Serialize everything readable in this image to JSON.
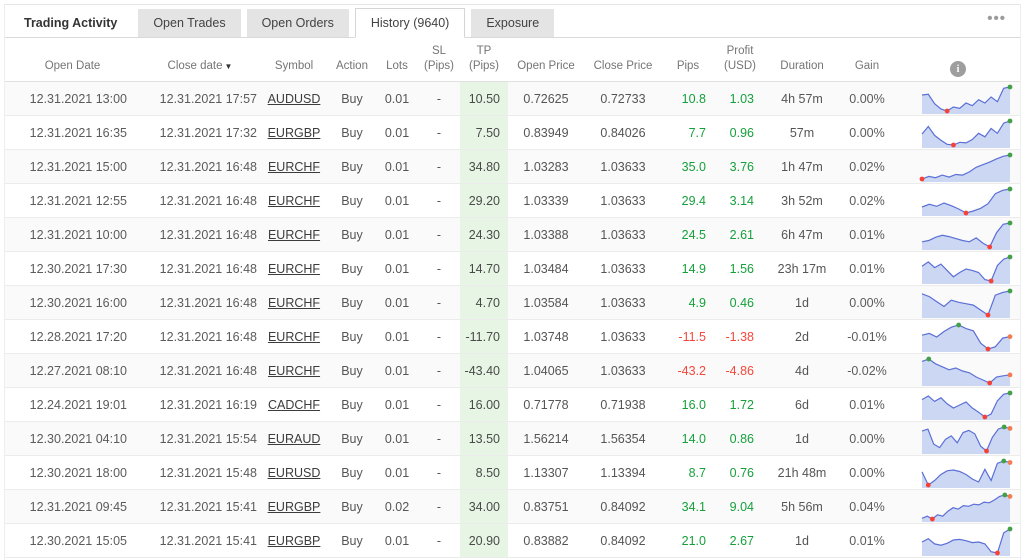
{
  "tabs": [
    {
      "id": "trading-activity",
      "label": "Trading Activity",
      "type": "title"
    },
    {
      "id": "open-trades",
      "label": "Open Trades",
      "type": "tab"
    },
    {
      "id": "open-orders",
      "label": "Open Orders",
      "type": "tab"
    },
    {
      "id": "history",
      "label": "History (9640)",
      "type": "tab",
      "active": true
    },
    {
      "id": "exposure",
      "label": "Exposure",
      "type": "tab"
    }
  ],
  "menu_icon": "•••",
  "info_icon": "i",
  "table": {
    "columns": [
      {
        "id": "open_date",
        "label": "Open Date"
      },
      {
        "id": "close_date",
        "label": "Close date",
        "sort": "desc",
        "sort_glyph": "▼"
      },
      {
        "id": "symbol",
        "label": "Symbol"
      },
      {
        "id": "action",
        "label": "Action"
      },
      {
        "id": "lots",
        "label": "Lots"
      },
      {
        "id": "sl",
        "label": "SL\n(Pips)"
      },
      {
        "id": "tp",
        "label": "TP\n(Pips)"
      },
      {
        "id": "open_price",
        "label": "Open Price"
      },
      {
        "id": "close_price",
        "label": "Close Price"
      },
      {
        "id": "pips",
        "label": "Pips"
      },
      {
        "id": "profit",
        "label": "Profit\n(USD)"
      },
      {
        "id": "duration",
        "label": "Duration"
      },
      {
        "id": "gain",
        "label": "Gain"
      },
      {
        "id": "chart",
        "label": ""
      }
    ],
    "rows": [
      {
        "open_date": "12.31.2021 13:00",
        "close_date": "12.31.2021 17:57",
        "symbol": "AUDUSD",
        "action": "Buy",
        "lots": "0.01",
        "sl": "-",
        "tp": "10.50",
        "open_price": "0.72625",
        "close_price": "0.72733",
        "pips": "10.8",
        "profit": "1.03",
        "duration": "4h 57m",
        "gain": "0.00%",
        "spark": [
          68,
          70,
          42,
          26,
          20,
          32,
          28,
          44,
          36,
          54,
          44,
          62,
          48,
          88,
          92
        ]
      },
      {
        "open_date": "12.31.2021 16:35",
        "close_date": "12.31.2021 17:32",
        "symbol": "EURGBP",
        "action": "Buy",
        "lots": "0.01",
        "sl": "-",
        "tp": "7.50",
        "open_price": "0.83949",
        "close_price": "0.84026",
        "pips": "7.7",
        "profit": "0.96",
        "duration": "57m",
        "gain": "0.00%",
        "spark": [
          50,
          72,
          46,
          32,
          20,
          18,
          26,
          24,
          34,
          52,
          42,
          66,
          52,
          82,
          88
        ]
      },
      {
        "open_date": "12.31.2021 15:00",
        "close_date": "12.31.2021 16:48",
        "symbol": "EURCHF",
        "action": "Buy",
        "lots": "0.01",
        "sl": "-",
        "tp": "34.80",
        "open_price": "1.03283",
        "close_price": "1.03633",
        "pips": "35.0",
        "profit": "3.76",
        "duration": "1h 47m",
        "gain": "0.02%",
        "spark": [
          12,
          20,
          16,
          24,
          18,
          26,
          24,
          34,
          48,
          56,
          64,
          74,
          82,
          86
        ]
      },
      {
        "open_date": "12.31.2021 12:55",
        "close_date": "12.31.2021 16:48",
        "symbol": "EURCHF",
        "action": "Buy",
        "lots": "0.01",
        "sl": "-",
        "tp": "29.20",
        "open_price": "1.03339",
        "close_price": "1.03633",
        "pips": "29.4",
        "profit": "3.14",
        "duration": "3h 52m",
        "gain": "0.02%",
        "spark": [
          36,
          44,
          38,
          48,
          40,
          30,
          18,
          24,
          32,
          46,
          76,
          86,
          90
        ]
      },
      {
        "open_date": "12.31.2021 10:00",
        "close_date": "12.31.2021 16:48",
        "symbol": "EURCHF",
        "action": "Buy",
        "lots": "0.01",
        "sl": "-",
        "tp": "24.30",
        "open_price": "1.03388",
        "close_price": "1.03633",
        "pips": "24.5",
        "profit": "2.61",
        "duration": "6h 47m",
        "gain": "0.01%",
        "spark": [
          30,
          34,
          44,
          50,
          46,
          40,
          34,
          30,
          42,
          26,
          14,
          58,
          84,
          88
        ]
      },
      {
        "open_date": "12.30.2021 17:30",
        "close_date": "12.31.2021 16:48",
        "symbol": "EURCHF",
        "action": "Buy",
        "lots": "0.01",
        "sl": "-",
        "tp": "14.70",
        "open_price": "1.03484",
        "close_price": "1.03633",
        "pips": "14.9",
        "profit": "1.56",
        "duration": "23h 17m",
        "gain": "0.01%",
        "spark": [
          52,
          64,
          48,
          58,
          40,
          22,
          34,
          44,
          40,
          34,
          14,
          10,
          54,
          72,
          78
        ]
      },
      {
        "open_date": "12.30.2021 16:00",
        "close_date": "12.31.2021 16:48",
        "symbol": "EURCHF",
        "action": "Buy",
        "lots": "0.01",
        "sl": "-",
        "tp": "4.70",
        "open_price": "1.03584",
        "close_price": "1.03633",
        "pips": "4.9",
        "profit": "0.46",
        "duration": "1d",
        "gain": "0.00%",
        "spark": [
          70,
          62,
          48,
          34,
          52,
          46,
          42,
          38,
          24,
          10,
          66,
          74,
          78
        ]
      },
      {
        "open_date": "12.28.2021 17:20",
        "close_date": "12.31.2021 16:48",
        "symbol": "EURCHF",
        "action": "Buy",
        "lots": "0.01",
        "sl": "-",
        "tp": "-11.70",
        "open_price": "1.03748",
        "close_price": "1.03633",
        "pips": "-11.5",
        "profit": "-1.38",
        "duration": "2d",
        "gain": "-0.01%",
        "spark": [
          50,
          55,
          45,
          60,
          72,
          78,
          68,
          62,
          28,
          12,
          18,
          42,
          46
        ]
      },
      {
        "open_date": "12.27.2021 08:10",
        "close_date": "12.31.2021 16:48",
        "symbol": "EURCHF",
        "action": "Buy",
        "lots": "0.01",
        "sl": "-",
        "tp": "-43.40",
        "open_price": "1.04065",
        "close_price": "1.03633",
        "pips": "-43.2",
        "profit": "-4.86",
        "duration": "4d",
        "gain": "-0.02%",
        "spark": [
          80,
          88,
          72,
          62,
          52,
          58,
          48,
          42,
          28,
          18,
          8,
          28,
          32,
          35
        ]
      },
      {
        "open_date": "12.24.2021 19:01",
        "close_date": "12.31.2021 16:19",
        "symbol": "CADCHF",
        "action": "Buy",
        "lots": "0.01",
        "sl": "-",
        "tp": "16.00",
        "open_price": "0.71778",
        "close_price": "0.71938",
        "pips": "16.0",
        "profit": "1.72",
        "duration": "6d",
        "gain": "0.01%",
        "spark": [
          70,
          82,
          64,
          76,
          56,
          42,
          52,
          62,
          42,
          28,
          12,
          22,
          66,
          88,
          92
        ]
      },
      {
        "open_date": "12.30.2021 04:10",
        "close_date": "12.31.2021 15:54",
        "symbol": "EURAUD",
        "action": "Buy",
        "lots": "0.01",
        "sl": "-",
        "tp": "13.50",
        "open_price": "1.56214",
        "close_price": "1.56354",
        "pips": "14.0",
        "profit": "0.86",
        "duration": "1d",
        "gain": "0.00%",
        "spark": [
          66,
          72,
          28,
          18,
          42,
          52,
          32,
          62,
          68,
          58,
          22,
          8,
          48,
          72,
          78,
          74
        ]
      },
      {
        "open_date": "12.30.2021 18:00",
        "close_date": "12.31.2021 15:48",
        "symbol": "EURUSD",
        "action": "Buy",
        "lots": "0.01",
        "sl": "-",
        "tp": "8.50",
        "open_price": "1.13307",
        "close_price": "1.13394",
        "pips": "8.7",
        "profit": "0.76",
        "duration": "21h 48m",
        "gain": "0.00%",
        "spark": [
          55,
          20,
          32,
          48,
          58,
          60,
          56,
          48,
          36,
          28,
          62,
          32,
          78,
          84,
          80
        ]
      },
      {
        "open_date": "12.31.2021 09:45",
        "close_date": "12.31.2021 15:41",
        "symbol": "EURGBP",
        "action": "Buy",
        "lots": "0.02",
        "sl": "-",
        "tp": "34.00",
        "open_price": "0.83751",
        "close_price": "0.84092",
        "pips": "34.1",
        "profit": "9.04",
        "duration": "5h 56m",
        "gain": "0.04%",
        "spark": [
          22,
          28,
          20,
          32,
          28,
          42,
          52,
          48,
          58,
          56,
          62,
          60,
          68,
          66,
          74,
          84,
          88,
          84
        ]
      },
      {
        "open_date": "12.30.2021 15:05",
        "close_date": "12.31.2021 15:41",
        "symbol": "EURGBP",
        "action": "Buy",
        "lots": "0.01",
        "sl": "-",
        "tp": "20.90",
        "open_price": "0.83882",
        "close_price": "0.84092",
        "pips": "21.0",
        "profit": "2.67",
        "duration": "1d",
        "gain": "0.01%",
        "spark": [
          44,
          54,
          38,
          34,
          40,
          50,
          52,
          48,
          42,
          44,
          38,
          14,
          10,
          72,
          84
        ]
      }
    ]
  },
  "colors": {
    "positive": "#16a03c",
    "negative": "#f4483c",
    "tp_column_bg": "#e7f6e4",
    "spark_line": "#5b6fd6",
    "spark_fill": "#ccd8f3",
    "spark_dot_min": "#f44336",
    "spark_dot_max": "#43a047",
    "spark_dot_end": "#f57c51"
  }
}
